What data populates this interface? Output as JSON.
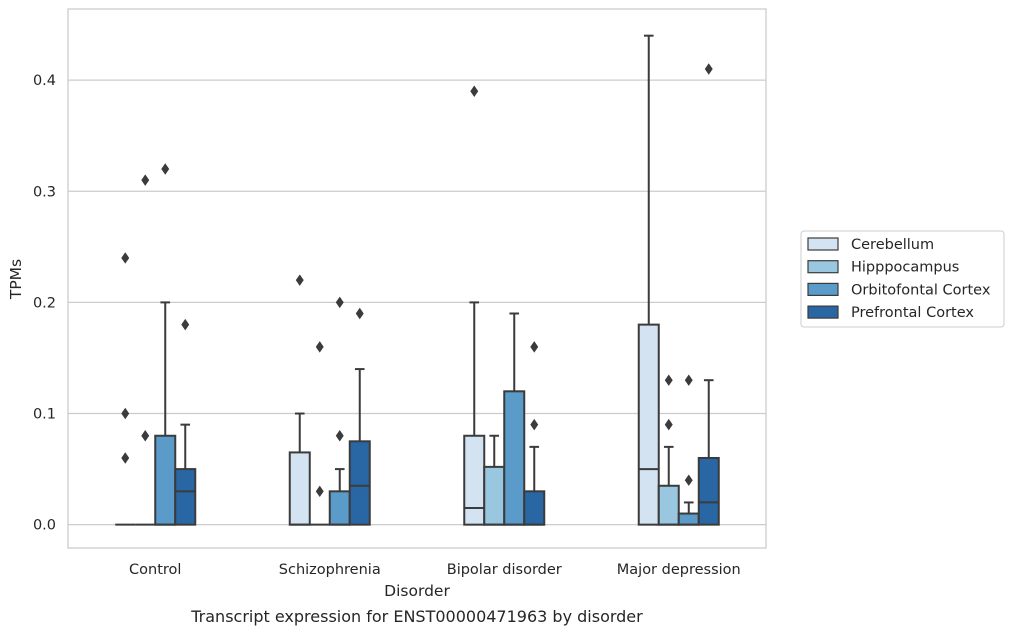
{
  "chart_data": {
    "type": "boxplot",
    "xlabel": "Disorder",
    "ylabel": "TPMs",
    "caption": "Transcript expression for ENST00000471963 by disorder",
    "ylim": [
      -0.021,
      0.464
    ],
    "yticks": [
      "0.0",
      "0.1",
      "0.2",
      "0.3",
      "0.4"
    ],
    "ytick_values": [
      0.0,
      0.1,
      0.2,
      0.3,
      0.4
    ],
    "grid": true,
    "legend_position": "right",
    "categories": [
      "Control",
      "Schizophrenia",
      "Bipolar disorder",
      "Major depression"
    ],
    "series": [
      {
        "name": "Cerebellum",
        "color": "#d3e3f2",
        "boxes": [
          {
            "q1": 0.0,
            "median": 0.0,
            "q3": 0.0,
            "whislo": 0.0,
            "whishi": 0.0,
            "fliers": [
              0.24,
              0.1,
              0.06
            ]
          },
          {
            "q1": 0.0,
            "median": 0.0,
            "q3": 0.065,
            "whislo": 0.0,
            "whishi": 0.1,
            "fliers": [
              0.22
            ]
          },
          {
            "q1": 0.0,
            "median": 0.015,
            "q3": 0.08,
            "whislo": 0.0,
            "whishi": 0.2,
            "fliers": [
              0.39
            ]
          },
          {
            "q1": 0.0,
            "median": 0.05,
            "q3": 0.18,
            "whislo": 0.0,
            "whishi": 0.44,
            "fliers": []
          }
        ]
      },
      {
        "name": "Hipppocampus",
        "color": "#9ac7e0",
        "boxes": [
          {
            "q1": 0.0,
            "median": 0.0,
            "q3": 0.0,
            "whislo": 0.0,
            "whishi": 0.0,
            "fliers": [
              0.31,
              0.08
            ]
          },
          {
            "q1": 0.0,
            "median": 0.0,
            "q3": 0.0,
            "whislo": 0.0,
            "whishi": 0.0,
            "fliers": [
              0.16,
              0.03
            ]
          },
          {
            "q1": 0.0,
            "median": 0.0,
            "q3": 0.052,
            "whislo": 0.0,
            "whishi": 0.08,
            "fliers": []
          },
          {
            "q1": 0.0,
            "median": 0.0,
            "q3": 0.035,
            "whislo": 0.0,
            "whishi": 0.07,
            "fliers": [
              0.13,
              0.09
            ]
          }
        ]
      },
      {
        "name": "Orbitofontal Cortex",
        "color": "#5a9bc9",
        "boxes": [
          {
            "q1": 0.0,
            "median": 0.0,
            "q3": 0.08,
            "whislo": 0.0,
            "whishi": 0.2,
            "fliers": [
              0.32
            ]
          },
          {
            "q1": 0.0,
            "median": 0.0,
            "q3": 0.03,
            "whislo": 0.0,
            "whishi": 0.05,
            "fliers": [
              0.2,
              0.08
            ]
          },
          {
            "q1": 0.0,
            "median": 0.0,
            "q3": 0.12,
            "whislo": 0.0,
            "whishi": 0.19,
            "fliers": []
          },
          {
            "q1": 0.0,
            "median": 0.0,
            "q3": 0.01,
            "whislo": 0.0,
            "whishi": 0.02,
            "fliers": [
              0.13,
              0.04
            ]
          }
        ]
      },
      {
        "name": "Prefrontal Cortex",
        "color": "#2966a4",
        "boxes": [
          {
            "q1": 0.0,
            "median": 0.03,
            "q3": 0.05,
            "whislo": 0.0,
            "whishi": 0.09,
            "fliers": [
              0.18
            ]
          },
          {
            "q1": 0.0,
            "median": 0.035,
            "q3": 0.075,
            "whislo": 0.0,
            "whishi": 0.14,
            "fliers": [
              0.19
            ]
          },
          {
            "q1": 0.0,
            "median": 0.0,
            "q3": 0.03,
            "whislo": 0.0,
            "whishi": 0.07,
            "fliers": [
              0.16,
              0.09
            ]
          },
          {
            "q1": 0.0,
            "median": 0.02,
            "q3": 0.06,
            "whislo": 0.0,
            "whishi": 0.13,
            "fliers": [
              0.41
            ]
          }
        ]
      }
    ]
  }
}
